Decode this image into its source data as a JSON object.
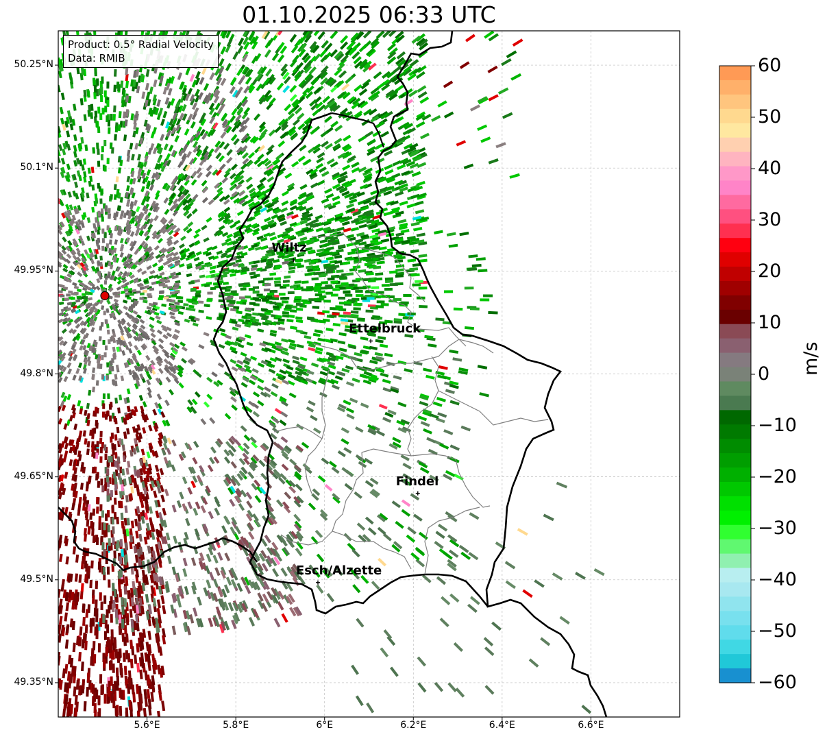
{
  "title": "01.10.2025 06:33 UTC",
  "info": {
    "product": "Product: 0.5° Radial Velocity",
    "source": "Data: RMIB"
  },
  "map": {
    "lon_range": [
      5.4,
      6.8
    ],
    "lat_range": [
      49.3,
      50.3
    ],
    "lon_ticks": [
      "5.6°E",
      "5.8°E",
      "6°E",
      "6.2°E",
      "6.4°E",
      "6.6°E"
    ],
    "lat_ticks": [
      "50.25°N",
      "50.1°N",
      "49.95°N",
      "49.8°N",
      "49.65°N",
      "49.5°N",
      "49.35°N"
    ],
    "grid": true,
    "radar_site": {
      "lon": 5.505,
      "lat": 49.914,
      "color": "#e00000"
    },
    "places": [
      {
        "name": "Wiltz",
        "lon": 5.93,
        "lat": 49.966
      },
      {
        "name": "Ettelbruck",
        "lon": 6.104,
        "lat": 49.848
      },
      {
        "name": "Findel",
        "lon": 6.21,
        "lat": 49.626
      },
      {
        "name": "Esch/Alzette",
        "lon": 5.985,
        "lat": 49.496
      }
    ]
  },
  "colorbar": {
    "label": "m/s",
    "min": -60,
    "max": 60,
    "ticks": [
      "60",
      "50",
      "40",
      "30",
      "20",
      "10",
      "0",
      "−10",
      "−20",
      "−30",
      "−40",
      "−50",
      "−60"
    ],
    "colors": [
      "#ff9a55",
      "#ffb06a",
      "#ffc57e",
      "#ffd98f",
      "#ffe8a0",
      "#ffd0b0",
      "#ffb4c0",
      "#ff98c8",
      "#ff84c8",
      "#ff6aa0",
      "#ff5080",
      "#ff3050",
      "#ff0010",
      "#e00000",
      "#c00000",
      "#a00000",
      "#800000",
      "#6a0000",
      "#8a4a55",
      "#8a6070",
      "#857a80",
      "#7a8278",
      "#5f8a60",
      "#4a7a50",
      "#006800",
      "#007a00",
      "#008c00",
      "#009e00",
      "#00b000",
      "#00c800",
      "#00e000",
      "#00f000",
      "#30ff30",
      "#60f870",
      "#90f0b0",
      "#b8eef0",
      "#a8e8f0",
      "#90e4ee",
      "#78e0ee",
      "#60dcec",
      "#40d8e4",
      "#20c8d8",
      "#1890d0"
    ]
  }
}
